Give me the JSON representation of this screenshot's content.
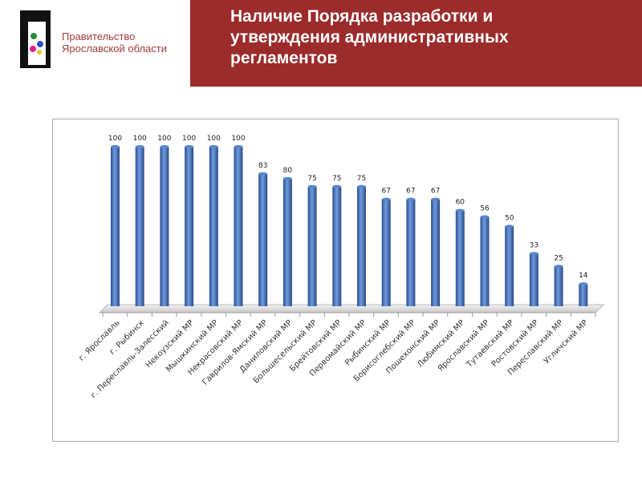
{
  "header": {
    "org_name": "Правительство Ярославской области",
    "org_line1": "Правительство",
    "org_line2": "Ярославской области",
    "title": "Наличие Порядка разработки и утверждения административных регламентов",
    "title_lines": [
      "Наличие Порядка разработки и",
      "утверждения административных",
      "регламентов"
    ],
    "accent_color": "#9c2b2b"
  },
  "chart_data": {
    "type": "bar",
    "style": "3d-cylinder",
    "bar_color": "#4472c4",
    "categories": [
      "г. Ярославль",
      "г. Рыбинск",
      "г. Переславль-Залесский",
      "Некоузский МР",
      "Мышкинский МР",
      "Некрасовский МР",
      "Гаврилов-Ямский МР",
      "Даниловский МР",
      "Большесельский МР",
      "Брейтовский МР",
      "Первомайский МР",
      "Рыбинский МР",
      "Борисоглебский МР",
      "Пошехонский МР",
      "Любимский МР",
      "Ярославский МР",
      "Тутаевский МР",
      "Ростовский МР",
      "Переславский МР",
      "Угличский МР"
    ],
    "values": [
      100,
      100,
      100,
      100,
      100,
      100,
      83,
      80,
      75,
      75,
      75,
      67,
      67,
      67,
      60,
      56,
      50,
      33,
      25,
      14
    ],
    "ylim": [
      0,
      100
    ],
    "grid": false,
    "legend": "none"
  }
}
